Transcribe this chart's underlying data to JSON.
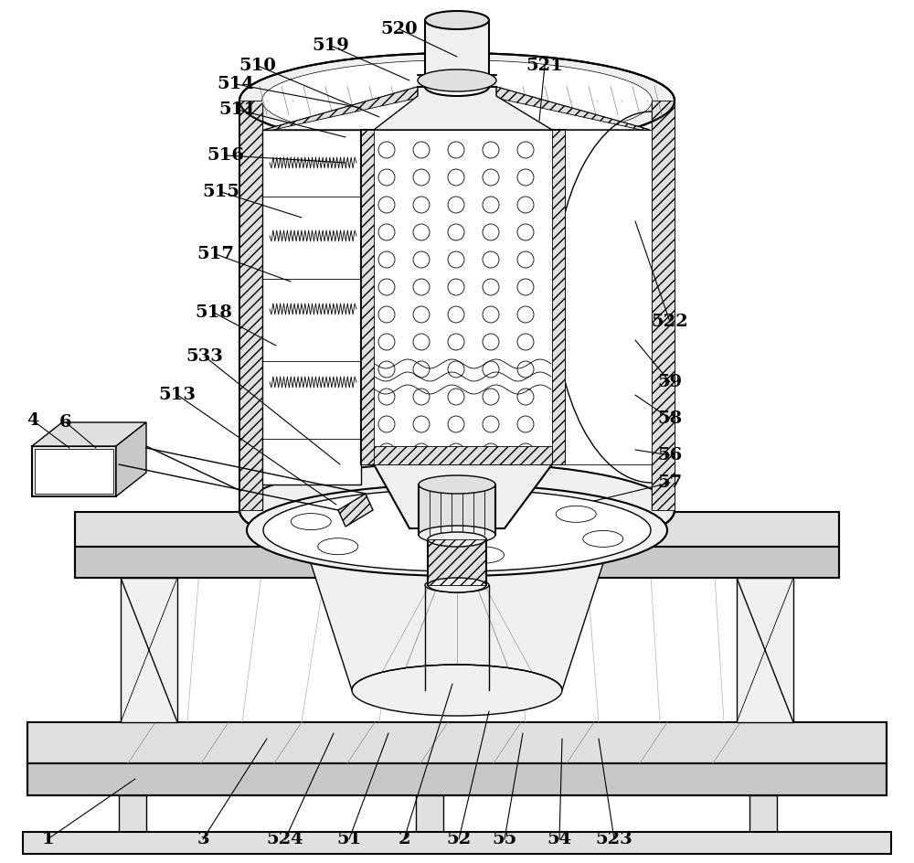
{
  "bg_color": "#ffffff",
  "figsize": [
    10.0,
    9.44
  ],
  "dpi": 100,
  "annotations": {
    "520": [
      437,
      32,
      500,
      62
    ],
    "519": [
      362,
      50,
      448,
      88
    ],
    "510": [
      282,
      72,
      415,
      128
    ],
    "514": [
      258,
      92,
      395,
      118
    ],
    "511": [
      260,
      120,
      378,
      150
    ],
    "516": [
      247,
      170,
      378,
      178
    ],
    "515": [
      242,
      210,
      330,
      238
    ],
    "517": [
      236,
      278,
      318,
      308
    ],
    "518": [
      234,
      342,
      302,
      378
    ],
    "533": [
      224,
      390,
      372,
      508
    ],
    "513": [
      194,
      432,
      368,
      552
    ],
    "521": [
      596,
      72,
      590,
      132
    ],
    "522": [
      733,
      352,
      695,
      242
    ],
    "59": [
      733,
      418,
      695,
      372
    ],
    "58": [
      733,
      458,
      695,
      432
    ],
    "56": [
      733,
      498,
      695,
      492
    ],
    "57": [
      733,
      528,
      650,
      548
    ],
    "4": [
      36,
      460,
      76,
      490
    ],
    "6": [
      72,
      462,
      105,
      490
    ],
    "1": [
      52,
      918,
      148,
      852
    ],
    "3": [
      222,
      918,
      292,
      808
    ],
    "524": [
      312,
      918,
      365,
      802
    ],
    "51": [
      382,
      918,
      425,
      802
    ],
    "2": [
      442,
      918,
      495,
      748
    ],
    "52": [
      502,
      918,
      535,
      778
    ],
    "55": [
      552,
      918,
      572,
      802
    ],
    "54": [
      612,
      918,
      615,
      808
    ],
    "523": [
      672,
      918,
      655,
      808
    ]
  }
}
